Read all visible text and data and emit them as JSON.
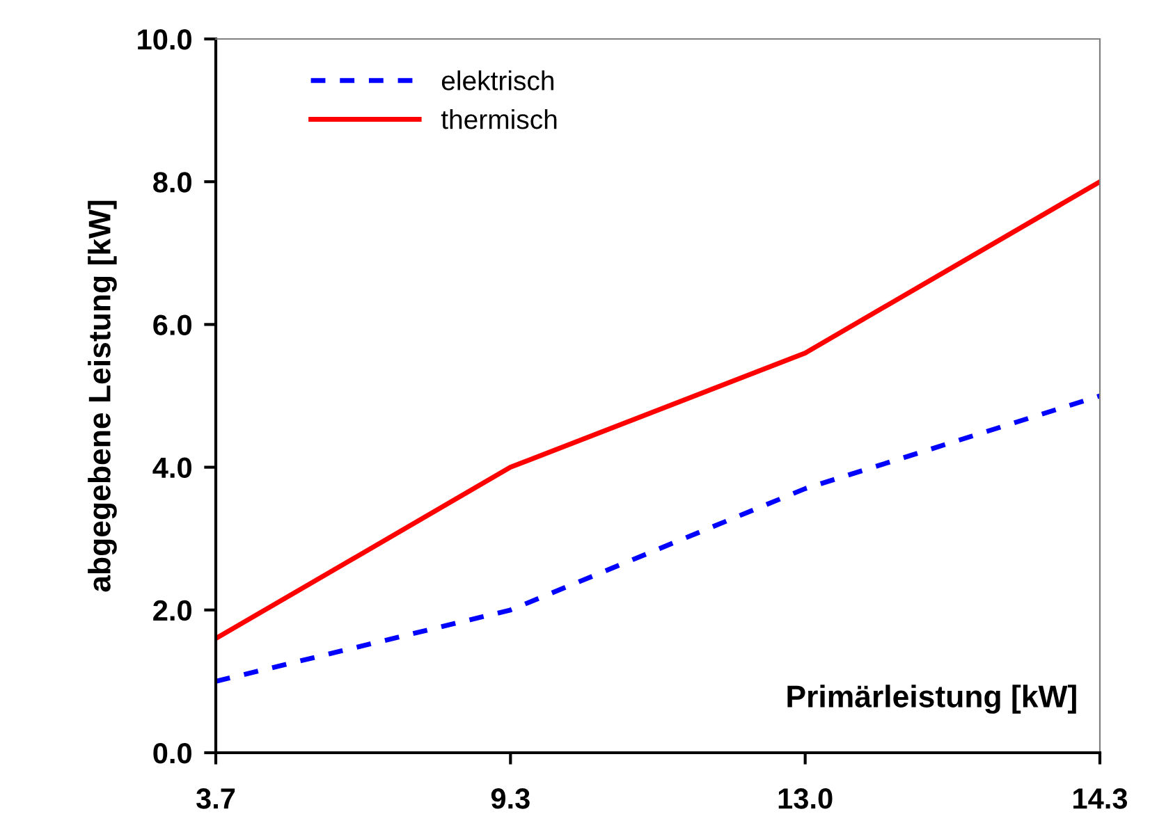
{
  "chart_data": {
    "type": "line",
    "xlabel": "Primärleistung [kW]",
    "ylabel": "abgegebene Leistung [kW]",
    "categories": [
      "3.7",
      "9.3",
      "13.0",
      "14.3"
    ],
    "series": [
      {
        "name": "elektrisch",
        "color": "#0000ff",
        "values": [
          1.0,
          2.0,
          3.7,
          5.0
        ],
        "line_style": "dashed"
      },
      {
        "name": "thermisch",
        "color": "#ff0000",
        "values": [
          1.6,
          4.0,
          5.6,
          8.0
        ],
        "line_style": "solid"
      }
    ],
    "ylim": [
      0,
      10
    ],
    "yticks": [
      {
        "value": 0,
        "label": "0.0"
      },
      {
        "value": 2,
        "label": "2.0"
      },
      {
        "value": 4,
        "label": "4.0"
      },
      {
        "value": 6,
        "label": "6.0"
      },
      {
        "value": 8,
        "label": "8.0"
      },
      {
        "value": 10,
        "label": "10.0"
      }
    ],
    "grid": false,
    "legend": "top left",
    "marker": "none"
  }
}
